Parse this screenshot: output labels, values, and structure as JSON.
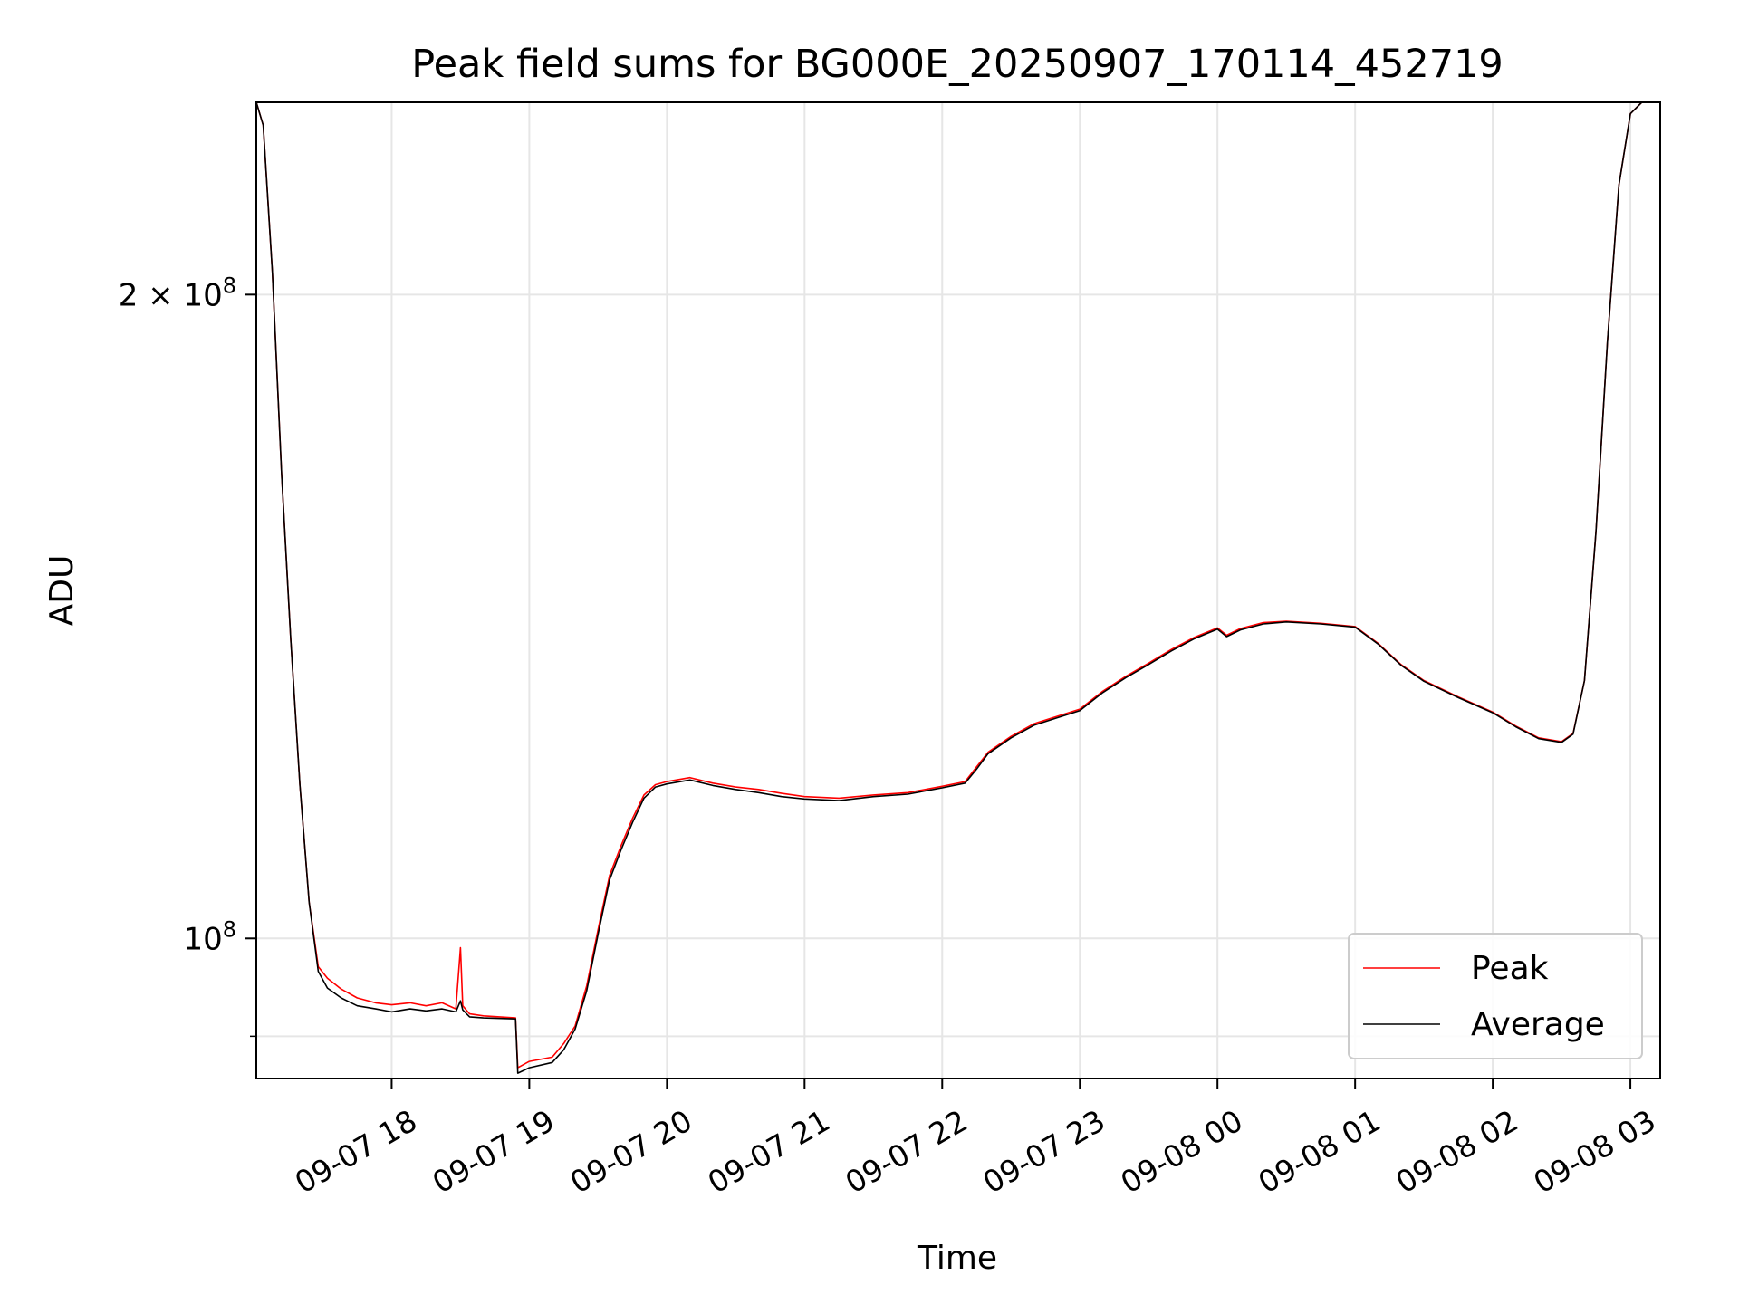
{
  "chart_data": {
    "type": "line",
    "title": "Peak field sums for BG000E_20250907_170114_452719",
    "xlabel": "Time",
    "ylabel": "ADU",
    "y_scale": "log",
    "xlim": [
      "2025-09-07 17:01",
      "2025-09-08 03:13"
    ],
    "ylim": [
      86000000,
      246000000
    ],
    "x_ticks": [
      "09-07 18",
      "09-07 19",
      "09-07 20",
      "09-07 21",
      "09-07 22",
      "09-07 23",
      "09-08 00",
      "09-08 01",
      "09-08 02",
      "09-08 03"
    ],
    "x_tick_times": [
      "2025-09-07 18:00",
      "2025-09-07 19:00",
      "2025-09-07 20:00",
      "2025-09-07 21:00",
      "2025-09-07 22:00",
      "2025-09-07 23:00",
      "2025-09-08 00:00",
      "2025-09-08 01:00",
      "2025-09-08 02:00",
      "2025-09-08 03:00"
    ],
    "y_major_ticks": [
      {
        "value": 200000000,
        "mantissa": "2",
        "exp": "8"
      },
      {
        "value": 100000000,
        "mantissa": "",
        "exp": "8"
      }
    ],
    "y_minor_ticks": [
      90000000
    ],
    "grid": true,
    "legend_position": "lower-right",
    "series": [
      {
        "name": "Peak",
        "color": "#ff0000",
        "points": [
          [
            "2025-09-07 17:01",
            246000000
          ],
          [
            "2025-09-07 17:04",
            240000000
          ],
          [
            "2025-09-07 17:08",
            205000000
          ],
          [
            "2025-09-07 17:12",
            165000000
          ],
          [
            "2025-09-07 17:16",
            138000000
          ],
          [
            "2025-09-07 17:20",
            118000000
          ],
          [
            "2025-09-07 17:24",
            104000000
          ],
          [
            "2025-09-07 17:28",
            97000000
          ],
          [
            "2025-09-07 17:32",
            95800000
          ],
          [
            "2025-09-07 17:38",
            94700000
          ],
          [
            "2025-09-07 17:45",
            93800000
          ],
          [
            "2025-09-07 17:53",
            93300000
          ],
          [
            "2025-09-07 18:00",
            93100000
          ],
          [
            "2025-09-07 18:08",
            93300000
          ],
          [
            "2025-09-07 18:15",
            93000000
          ],
          [
            "2025-09-07 18:22",
            93300000
          ],
          [
            "2025-09-07 18:28",
            92700000
          ],
          [
            "2025-09-07 18:30",
            99000000
          ],
          [
            "2025-09-07 18:31",
            93000000
          ],
          [
            "2025-09-07 18:34",
            92200000
          ],
          [
            "2025-09-07 18:40",
            92000000
          ],
          [
            "2025-09-07 18:54",
            91800000
          ],
          [
            "2025-09-07 18:55",
            87000000
          ],
          [
            "2025-09-07 19:00",
            87600000
          ],
          [
            "2025-09-07 19:10",
            88000000
          ],
          [
            "2025-09-07 19:15",
            89300000
          ],
          [
            "2025-09-07 19:20",
            91000000
          ],
          [
            "2025-09-07 19:25",
            95000000
          ],
          [
            "2025-09-07 19:30",
            101000000
          ],
          [
            "2025-09-07 19:35",
            107000000
          ],
          [
            "2025-09-07 19:40",
            110500000
          ],
          [
            "2025-09-07 19:45",
            113800000
          ],
          [
            "2025-09-07 19:50",
            116700000
          ],
          [
            "2025-09-07 19:55",
            118000000
          ],
          [
            "2025-09-07 20:00",
            118400000
          ],
          [
            "2025-09-07 20:10",
            118900000
          ],
          [
            "2025-09-07 20:20",
            118200000
          ],
          [
            "2025-09-07 20:30",
            117700000
          ],
          [
            "2025-09-07 20:40",
            117400000
          ],
          [
            "2025-09-07 20:50",
            116900000
          ],
          [
            "2025-09-07 21:00",
            116500000
          ],
          [
            "2025-09-07 21:15",
            116300000
          ],
          [
            "2025-09-07 21:30",
            116700000
          ],
          [
            "2025-09-07 21:45",
            117000000
          ],
          [
            "2025-09-07 22:00",
            117800000
          ],
          [
            "2025-09-07 22:10",
            118400000
          ],
          [
            "2025-09-07 22:15",
            120300000
          ],
          [
            "2025-09-07 22:20",
            122200000
          ],
          [
            "2025-09-07 22:30",
            124300000
          ],
          [
            "2025-09-07 22:40",
            126000000
          ],
          [
            "2025-09-07 22:50",
            127000000
          ],
          [
            "2025-09-07 23:00",
            128000000
          ],
          [
            "2025-09-07 23:10",
            130500000
          ],
          [
            "2025-09-07 23:20",
            132600000
          ],
          [
            "2025-09-07 23:30",
            134500000
          ],
          [
            "2025-09-07 23:40",
            136500000
          ],
          [
            "2025-09-07 23:50",
            138300000
          ],
          [
            "2025-09-08 00:00",
            139700000
          ],
          [
            "2025-09-08 00:04",
            138600000
          ],
          [
            "2025-09-08 00:10",
            139600000
          ],
          [
            "2025-09-08 00:20",
            140500000
          ],
          [
            "2025-09-08 00:30",
            140700000
          ],
          [
            "2025-09-08 00:45",
            140400000
          ],
          [
            "2025-09-08 01:00",
            139900000
          ],
          [
            "2025-09-08 01:10",
            137400000
          ],
          [
            "2025-09-08 01:20",
            134300000
          ],
          [
            "2025-09-08 01:30",
            132000000
          ],
          [
            "2025-09-08 01:45",
            129700000
          ],
          [
            "2025-09-08 02:00",
            127600000
          ],
          [
            "2025-09-08 02:10",
            125700000
          ],
          [
            "2025-09-08 02:20",
            124100000
          ],
          [
            "2025-09-08 02:30",
            123600000
          ],
          [
            "2025-09-08 02:35",
            124700000
          ],
          [
            "2025-09-08 02:40",
            132000000
          ],
          [
            "2025-09-08 02:45",
            155000000
          ],
          [
            "2025-09-08 02:50",
            190000000
          ],
          [
            "2025-09-08 02:55",
            225000000
          ],
          [
            "2025-09-08 03:00",
            243000000
          ],
          [
            "2025-09-08 03:05",
            246000000
          ],
          [
            "2025-09-08 03:13",
            246000000
          ]
        ]
      },
      {
        "name": "Average",
        "color": "#000000",
        "points": [
          [
            "2025-09-07 17:01",
            246000000
          ],
          [
            "2025-09-07 17:04",
            240000000
          ],
          [
            "2025-09-07 17:08",
            205000000
          ],
          [
            "2025-09-07 17:12",
            165000000
          ],
          [
            "2025-09-07 17:16",
            138000000
          ],
          [
            "2025-09-07 17:20",
            118000000
          ],
          [
            "2025-09-07 17:24",
            104000000
          ],
          [
            "2025-09-07 17:28",
            96500000
          ],
          [
            "2025-09-07 17:32",
            94800000
          ],
          [
            "2025-09-07 17:38",
            93800000
          ],
          [
            "2025-09-07 17:45",
            93000000
          ],
          [
            "2025-09-07 17:53",
            92700000
          ],
          [
            "2025-09-07 18:00",
            92400000
          ],
          [
            "2025-09-07 18:08",
            92700000
          ],
          [
            "2025-09-07 18:15",
            92500000
          ],
          [
            "2025-09-07 18:22",
            92700000
          ],
          [
            "2025-09-07 18:28",
            92400000
          ],
          [
            "2025-09-07 18:30",
            93500000
          ],
          [
            "2025-09-07 18:31",
            92600000
          ],
          [
            "2025-09-07 18:34",
            91900000
          ],
          [
            "2025-09-07 18:40",
            91800000
          ],
          [
            "2025-09-07 18:54",
            91700000
          ],
          [
            "2025-09-07 18:55",
            86500000
          ],
          [
            "2025-09-07 19:00",
            87000000
          ],
          [
            "2025-09-07 19:10",
            87500000
          ],
          [
            "2025-09-07 19:15",
            88700000
          ],
          [
            "2025-09-07 19:20",
            90700000
          ],
          [
            "2025-09-07 19:25",
            94500000
          ],
          [
            "2025-09-07 19:30",
            100500000
          ],
          [
            "2025-09-07 19:35",
            106500000
          ],
          [
            "2025-09-07 19:40",
            110000000
          ],
          [
            "2025-09-07 19:45",
            113300000
          ],
          [
            "2025-09-07 19:50",
            116300000
          ],
          [
            "2025-09-07 19:55",
            117700000
          ],
          [
            "2025-09-07 20:00",
            118100000
          ],
          [
            "2025-09-07 20:10",
            118600000
          ],
          [
            "2025-09-07 20:20",
            117900000
          ],
          [
            "2025-09-07 20:30",
            117400000
          ],
          [
            "2025-09-07 20:40",
            117000000
          ],
          [
            "2025-09-07 20:50",
            116500000
          ],
          [
            "2025-09-07 21:00",
            116200000
          ],
          [
            "2025-09-07 21:15",
            116000000
          ],
          [
            "2025-09-07 21:30",
            116500000
          ],
          [
            "2025-09-07 21:45",
            116800000
          ],
          [
            "2025-09-07 22:00",
            117600000
          ],
          [
            "2025-09-07 22:10",
            118200000
          ],
          [
            "2025-09-07 22:15",
            120000000
          ],
          [
            "2025-09-07 22:20",
            122000000
          ],
          [
            "2025-09-07 22:30",
            124100000
          ],
          [
            "2025-09-07 22:40",
            125800000
          ],
          [
            "2025-09-07 22:50",
            126800000
          ],
          [
            "2025-09-07 23:00",
            127800000
          ],
          [
            "2025-09-07 23:10",
            130300000
          ],
          [
            "2025-09-07 23:20",
            132400000
          ],
          [
            "2025-09-07 23:30",
            134300000
          ],
          [
            "2025-09-07 23:40",
            136300000
          ],
          [
            "2025-09-07 23:50",
            138100000
          ],
          [
            "2025-09-08 00:00",
            139500000
          ],
          [
            "2025-09-08 00:04",
            138400000
          ],
          [
            "2025-09-08 00:10",
            139400000
          ],
          [
            "2025-09-08 00:20",
            140300000
          ],
          [
            "2025-09-08 00:30",
            140600000
          ],
          [
            "2025-09-08 00:45",
            140300000
          ],
          [
            "2025-09-08 01:00",
            139800000
          ],
          [
            "2025-09-08 01:10",
            137300000
          ],
          [
            "2025-09-08 01:20",
            134200000
          ],
          [
            "2025-09-08 01:30",
            131900000
          ],
          [
            "2025-09-08 01:45",
            129600000
          ],
          [
            "2025-09-08 02:00",
            127500000
          ],
          [
            "2025-09-08 02:10",
            125600000
          ],
          [
            "2025-09-08 02:20",
            124000000
          ],
          [
            "2025-09-08 02:30",
            123500000
          ],
          [
            "2025-09-08 02:35",
            124600000
          ],
          [
            "2025-09-08 02:40",
            132000000
          ],
          [
            "2025-09-08 02:45",
            155000000
          ],
          [
            "2025-09-08 02:50",
            190000000
          ],
          [
            "2025-09-08 02:55",
            225000000
          ],
          [
            "2025-09-08 03:00",
            243000000
          ],
          [
            "2025-09-08 03:05",
            246000000
          ],
          [
            "2025-09-08 03:13",
            246000000
          ]
        ]
      }
    ]
  }
}
